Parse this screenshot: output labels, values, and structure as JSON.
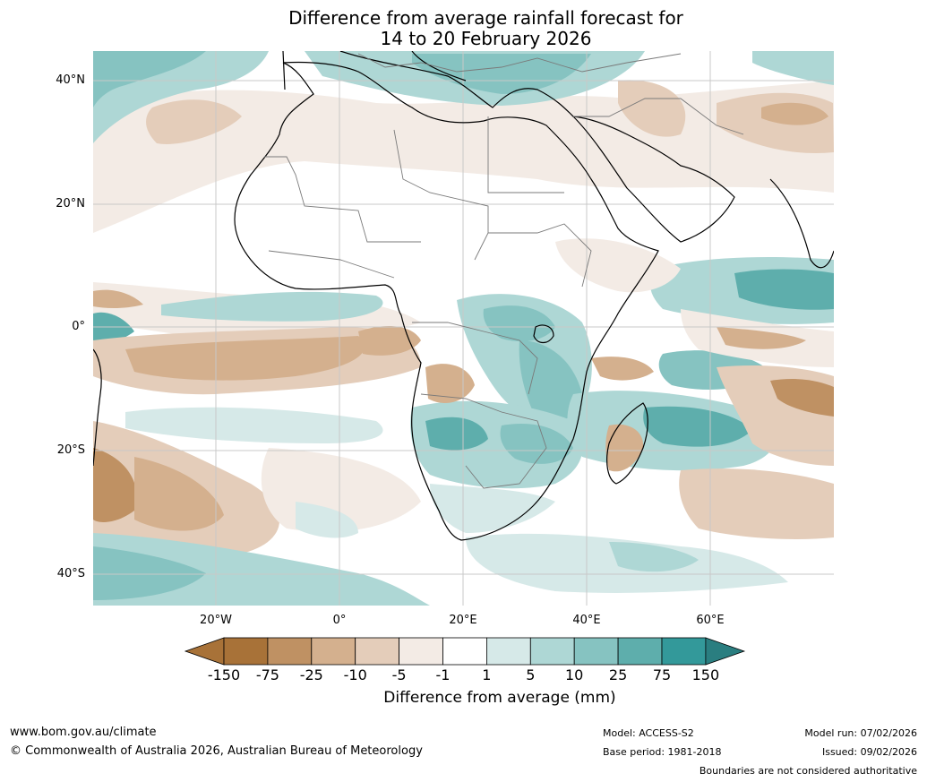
{
  "title": {
    "line1": "Difference from average rainfall forecast for",
    "line2": "14 to 20 February 2026"
  },
  "axes": {
    "lat_labels": [
      "40°N",
      "20°N",
      "0°",
      "20°S",
      "40°S"
    ],
    "lon_labels": [
      "20°W",
      "0°",
      "20°E",
      "40°E",
      "60°E"
    ]
  },
  "colorbar": {
    "ticks": [
      "-150",
      "-75",
      "-25",
      "-10",
      "-5",
      "-1",
      "1",
      "5",
      "10",
      "25",
      "75",
      "150"
    ],
    "colors": [
      "#a87238",
      "#bf9163",
      "#d4b08e",
      "#e4cdba",
      "#f3ebe5",
      "#ffffff",
      "#d6e9e8",
      "#aed7d5",
      "#86c3c1",
      "#5eaeac",
      "#33999a",
      "#2a7e80"
    ],
    "title": "Difference from average (mm)"
  },
  "footer": {
    "website": "www.bom.gov.au/climate",
    "copyright": "© Commonwealth of Australia 2026, Australian Bureau of Meteorology",
    "model": "Model: ACCESS-S2",
    "base_period": "Base period: 1981-2018",
    "model_run": "Model run: 07/02/2026",
    "issued": "Issued: 09/02/2026",
    "boundaries_note": "Boundaries are not considered authoritative"
  }
}
